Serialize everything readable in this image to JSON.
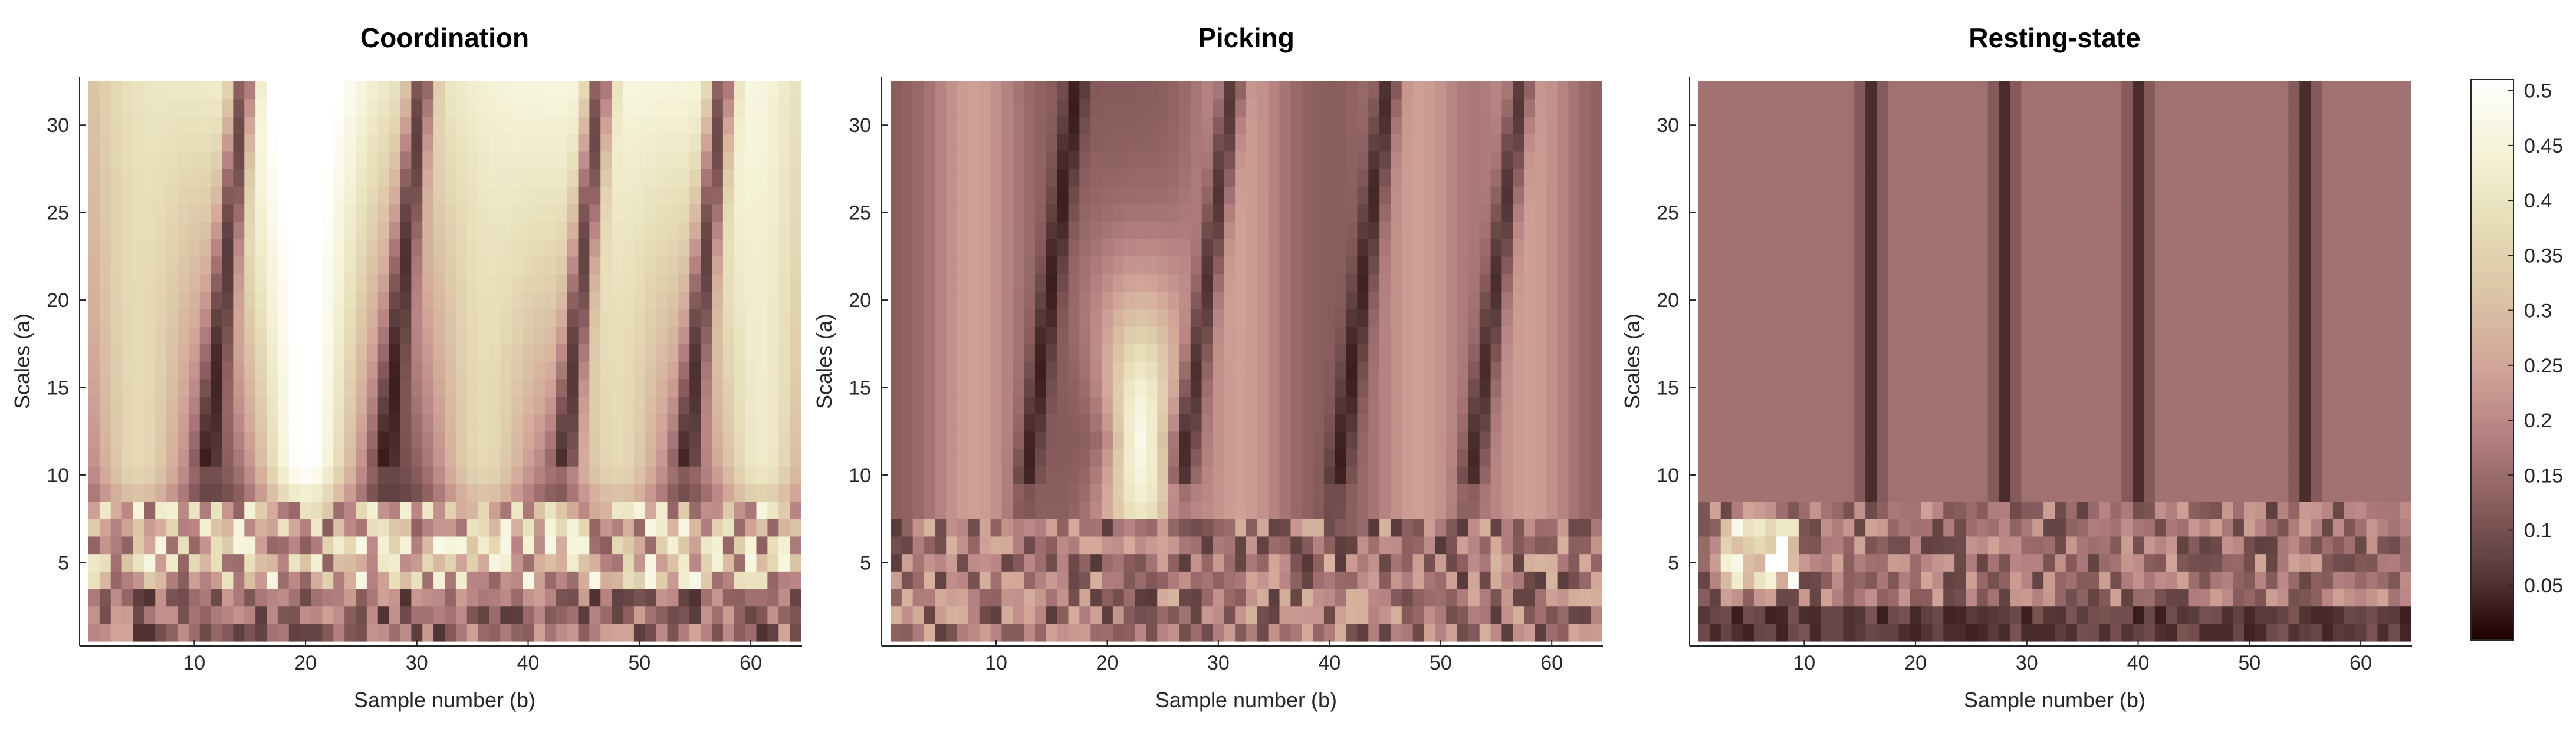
{
  "chart_data": [
    {
      "type": "heatmap",
      "title": "Coordination",
      "xlabel": "Sample number (b)",
      "ylabel": "Scales (a)",
      "x_range": [
        1,
        64
      ],
      "y_range": [
        1,
        32
      ],
      "xticks": [
        10,
        20,
        30,
        40,
        50,
        60
      ],
      "yticks": [
        5,
        10,
        15,
        20,
        25,
        30
      ],
      "columns": 64,
      "rows": 32,
      "value_description": "Bright bands centred near samples 5, 20, 36, 48 and 61 at upper scales; strong fine-scale activity at scales 4-8; mean magnitude ~0.25"
    },
    {
      "type": "heatmap",
      "title": "Picking",
      "xlabel": "Sample number (b)",
      "ylabel": "Scales (a)",
      "x_range": [
        1,
        64
      ],
      "y_range": [
        1,
        32
      ],
      "xticks": [
        10,
        20,
        30,
        40,
        50,
        60
      ],
      "yticks": [
        5,
        10,
        15,
        20,
        25,
        30
      ],
      "columns": 64,
      "rows": 32,
      "value_description": "Peak near sample 22-24 at scales 8-16 (~0.45); moderate bands elsewhere; mean magnitude ~0.18"
    },
    {
      "type": "heatmap",
      "title": "Resting-state",
      "xlabel": "Sample number (b)",
      "ylabel": "Scales (a)",
      "x_range": [
        1,
        64
      ],
      "y_range": [
        1,
        32
      ],
      "xticks": [
        10,
        20,
        30,
        40,
        50,
        60
      ],
      "yticks": [
        5,
        10,
        15,
        20,
        25,
        30
      ],
      "columns": 64,
      "rows": 32,
      "value_description": "Mostly uniform ~0.15 with vertical dark ridges near samples 16, 28, 40, 55; bright spot near sample 6 at scales 4-7 (~0.5)"
    }
  ],
  "colorbar": {
    "ticks": [
      0.05,
      0.1,
      0.15,
      0.2,
      0.25,
      0.3,
      0.35,
      0.4,
      0.45,
      0.5
    ],
    "range": [
      0,
      0.51
    ],
    "colormap": "pink",
    "colors": [
      "#1e0000",
      "#5a3c3c",
      "#8c5f5f",
      "#b88484",
      "#d3a99a",
      "#dcc6a7",
      "#e8dfb9",
      "#f5f3d8",
      "#ffffff"
    ]
  },
  "theme": {
    "axis_color": "#262626",
    "background": "#ffffff"
  }
}
